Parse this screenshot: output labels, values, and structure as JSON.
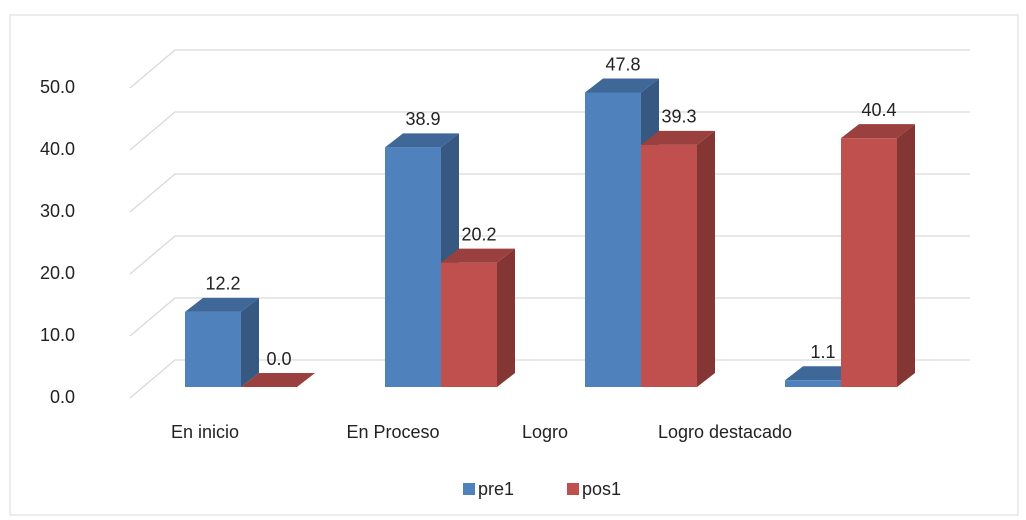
{
  "chart_data": {
    "type": "bar3d",
    "categories": [
      "En inicio",
      "En Proceso",
      "Logro",
      "Logro destacado"
    ],
    "series": [
      {
        "name": "pre1",
        "color": "#4f81bd",
        "values": [
          12.2,
          38.9,
          47.8,
          1.1
        ],
        "value_labels": [
          "12.2",
          "38.9",
          "47.8",
          "1.1"
        ]
      },
      {
        "name": "pos1",
        "color": "#c0504d",
        "values": [
          0.0,
          20.2,
          39.3,
          40.4
        ],
        "value_labels": [
          "0.0",
          "20.2",
          "39.3",
          "40.4"
        ]
      }
    ],
    "ylim": [
      0,
      50
    ],
    "yticks": [
      {
        "value": 0,
        "label": "0.0"
      },
      {
        "value": 10,
        "label": "10.0"
      },
      {
        "value": 20,
        "label": "20.0"
      },
      {
        "value": 30,
        "label": "30.0"
      },
      {
        "value": 40,
        "label": "40.0"
      },
      {
        "value": 50,
        "label": "50.0"
      }
    ],
    "grid": true,
    "legend": "bottom"
  }
}
